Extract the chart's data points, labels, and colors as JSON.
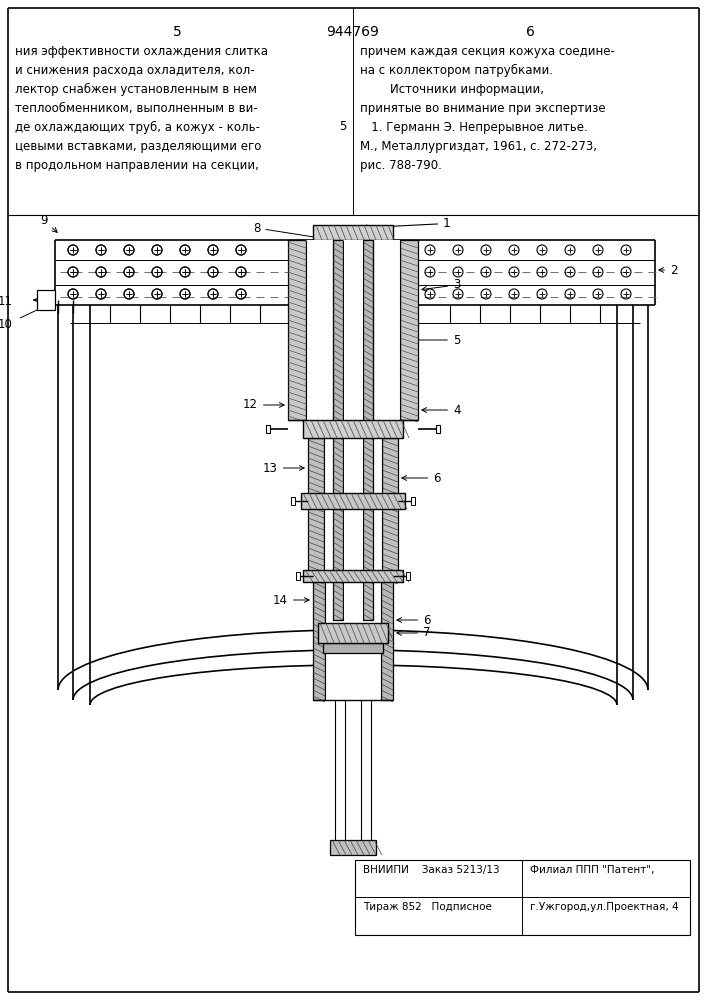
{
  "page_number_left": "5",
  "page_number_right": "6",
  "patent_number": "944769",
  "left_text": [
    "ния эффективности охлаждения слитка",
    "и снижения расхода охладителя, кол-",
    "лектор снабжен установленным в нем",
    "теплообменником, выполненным в ви-",
    "де охлаждающих труб, а кожух - коль-",
    "цевыми вставками, разделяющими его",
    "в продольном направлении на секции,"
  ],
  "right_text": [
    "причем каждая секция кожуха соедине-",
    "на с коллектором патрубками.",
    "        Источники информации,",
    "принятые во внимание при экспертизе",
    "   1. Германн Э. Непрерывное литье.",
    "М., Металлургиздат, 1961, с. 272-273,",
    "рис. 788-790."
  ],
  "bottom_left_text": [
    "ВНИИПИ    Заказ 5213/13",
    "Тираж 852   Подписное"
  ],
  "bottom_right_text": [
    "Филиал ППП \"Патент\",",
    "г.Ужгород,ул.Проектная, 4"
  ],
  "bg_color": "#ffffff",
  "text_color": "#000000"
}
